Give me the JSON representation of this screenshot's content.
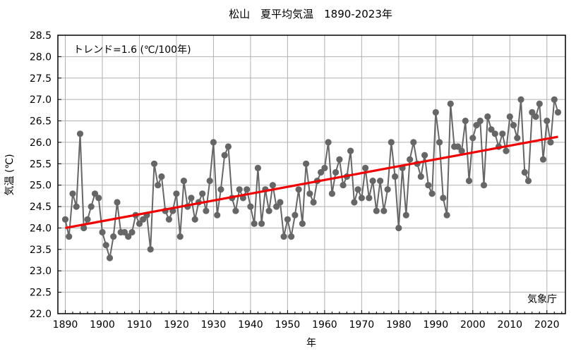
{
  "chart_data": {
    "type": "line",
    "title": "松山　夏平均気温　1890-2023年",
    "xlabel": "年",
    "ylabel": "気温 (℃)",
    "trend_label": "トレンド=1.6 (℃/100年)",
    "source_label": "気象庁",
    "xlim": [
      1888,
      2025
    ],
    "ylim": [
      22.0,
      28.5
    ],
    "x_ticks": [
      1890,
      1900,
      1910,
      1920,
      1930,
      1940,
      1950,
      1960,
      1970,
      1980,
      1990,
      2000,
      2010,
      2020
    ],
    "y_ticks": [
      22.0,
      22.5,
      23.0,
      23.5,
      24.0,
      24.5,
      25.0,
      25.5,
      26.0,
      26.5,
      27.0,
      27.5,
      28.0,
      28.5
    ],
    "grid": true,
    "colors": {
      "series": "#666666",
      "trend": "#ee0000",
      "grid": "#b0b0b0",
      "frame": "#000000"
    },
    "series": [
      {
        "x_start": 1890,
        "values": [
          24.2,
          23.8,
          24.8,
          24.5,
          26.2,
          24.0,
          24.2,
          24.5,
          24.8,
          24.7,
          23.9,
          23.6,
          23.3,
          23.8,
          24.6,
          23.9,
          23.9,
          23.8,
          23.9,
          24.3,
          24.1,
          24.2,
          24.3,
          23.5,
          25.5,
          25.0,
          25.2,
          24.4,
          24.2,
          24.4,
          24.8,
          23.8,
          25.1,
          24.5,
          24.7,
          24.2,
          24.6,
          24.8,
          24.4,
          25.1,
          26.0,
          24.3,
          24.9,
          25.7,
          25.9,
          24.7,
          24.4,
          24.9,
          24.7,
          24.9,
          24.5,
          24.1,
          25.4,
          24.1,
          24.9,
          24.4,
          25.0,
          24.5,
          24.6,
          23.8,
          24.2,
          23.8,
          24.3,
          24.9,
          24.1,
          25.5,
          24.8,
          24.6,
          25.1,
          25.3,
          25.4,
          26.0,
          24.8,
          25.3,
          25.6,
          25.0,
          25.2,
          25.8,
          24.6,
          24.9,
          24.7,
          25.4,
          24.7,
          25.1,
          24.4,
          25.1,
          24.4,
          24.9,
          26.0,
          25.2,
          24.0,
          25.4,
          24.3,
          25.6,
          26.0,
          25.5,
          25.2,
          25.7,
          25.0,
          24.8,
          26.7,
          26.0,
          24.7,
          24.3,
          26.9,
          25.9,
          25.9,
          25.8,
          26.5,
          25.1,
          26.1,
          26.4,
          26.5,
          25.0,
          26.6,
          26.3,
          26.2,
          25.9,
          26.2,
          25.8,
          26.6,
          26.4,
          26.1,
          27.0,
          25.3,
          25.1,
          26.7,
          26.6,
          26.9,
          25.6,
          26.5,
          26.0,
          27.0,
          26.7
        ]
      }
    ],
    "trend": {
      "x": [
        1890,
        2023
      ],
      "y": [
        24.0,
        26.13
      ]
    }
  }
}
